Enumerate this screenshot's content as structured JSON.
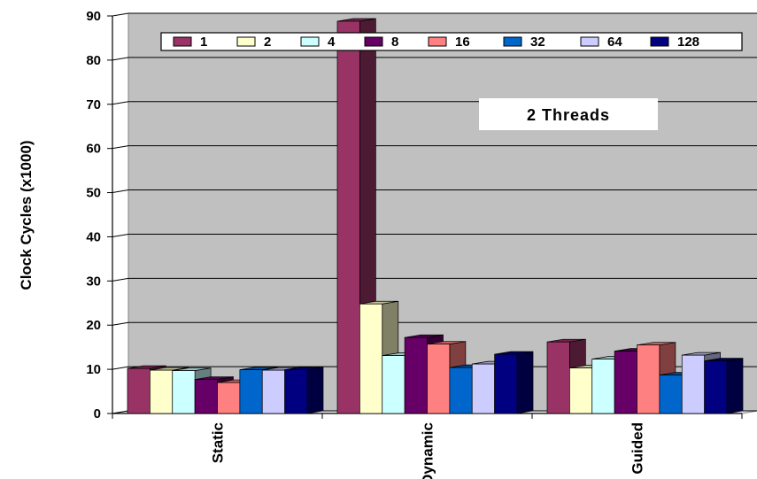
{
  "chart_data": {
    "type": "bar",
    "title": "",
    "xlabel": "",
    "ylabel": "Clock Cycles (x1000)",
    "ylim": [
      0,
      90
    ],
    "yticks": [
      0,
      10,
      20,
      30,
      40,
      50,
      60,
      70,
      80,
      90
    ],
    "grid": true,
    "legend_position": "top-right",
    "annotation": "2 Threads",
    "categories": [
      "Static",
      "Dynamic",
      "Guided"
    ],
    "series": [
      {
        "name": "1",
        "color": "#993366",
        "values": [
          10.2,
          88.8,
          16.2
        ]
      },
      {
        "name": "2",
        "color": "#FFFFCC",
        "values": [
          9.8,
          24.8,
          10.3
        ]
      },
      {
        "name": "4",
        "color": "#CCFFFF",
        "values": [
          9.7,
          13.1,
          12.3
        ]
      },
      {
        "name": "8",
        "color": "#660066",
        "values": [
          7.7,
          17.2,
          14.1
        ]
      },
      {
        "name": "16",
        "color": "#FF8080",
        "values": [
          7.0,
          15.7,
          15.5
        ]
      },
      {
        "name": "32",
        "color": "#0066CC",
        "values": [
          9.9,
          10.4,
          8.7
        ]
      },
      {
        "name": "64",
        "color": "#CCCCFF",
        "values": [
          9.8,
          11.2,
          13.2
        ]
      },
      {
        "name": "128",
        "color": "#000080",
        "values": [
          9.9,
          13.4,
          11.9
        ]
      }
    ]
  }
}
